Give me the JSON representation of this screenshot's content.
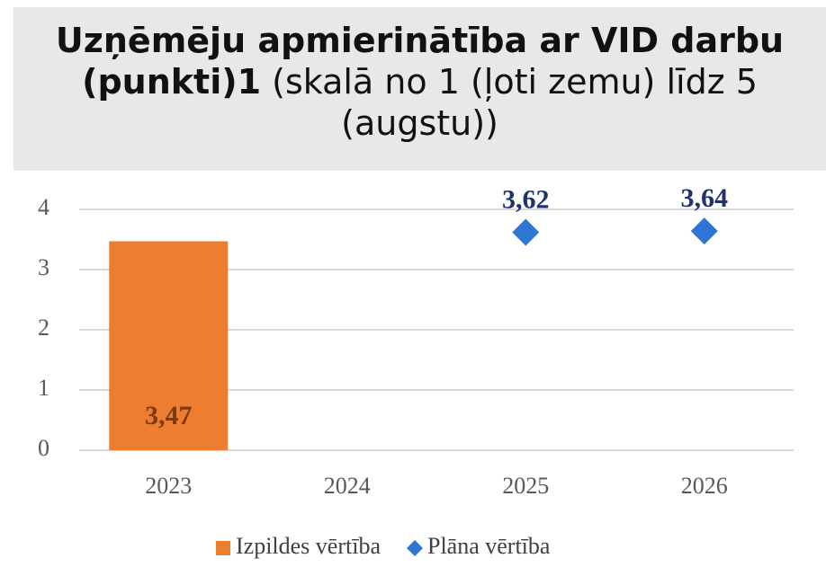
{
  "chart_data": {
    "type": "bar",
    "title": "Uzņēmēju apmierinātība ar VID darbu (punkti)1",
    "subtitle": "(skalā no 1 (ļoti zemu) līdz 5 (augstu))",
    "categories": [
      "2023",
      "2024",
      "2025",
      "2026"
    ],
    "series": [
      {
        "name": "Izpildes vērtība",
        "type": "bar",
        "color": "#ed7d31",
        "label_color": "#7a3b12",
        "values": [
          3.47,
          null,
          null,
          null
        ],
        "value_labels": [
          "3,47",
          null,
          null,
          null
        ]
      },
      {
        "name": "Plāna vērtība",
        "type": "scatter",
        "color": "#2e75d4",
        "label_color": "#1f3370",
        "values": [
          null,
          null,
          3.62,
          3.64
        ],
        "value_labels": [
          null,
          null,
          "3,62",
          "3,64"
        ]
      }
    ],
    "ylim": [
      0,
      4
    ],
    "yticks": [
      0,
      1,
      2,
      3,
      4
    ],
    "grid": true,
    "legend": "bottom"
  }
}
